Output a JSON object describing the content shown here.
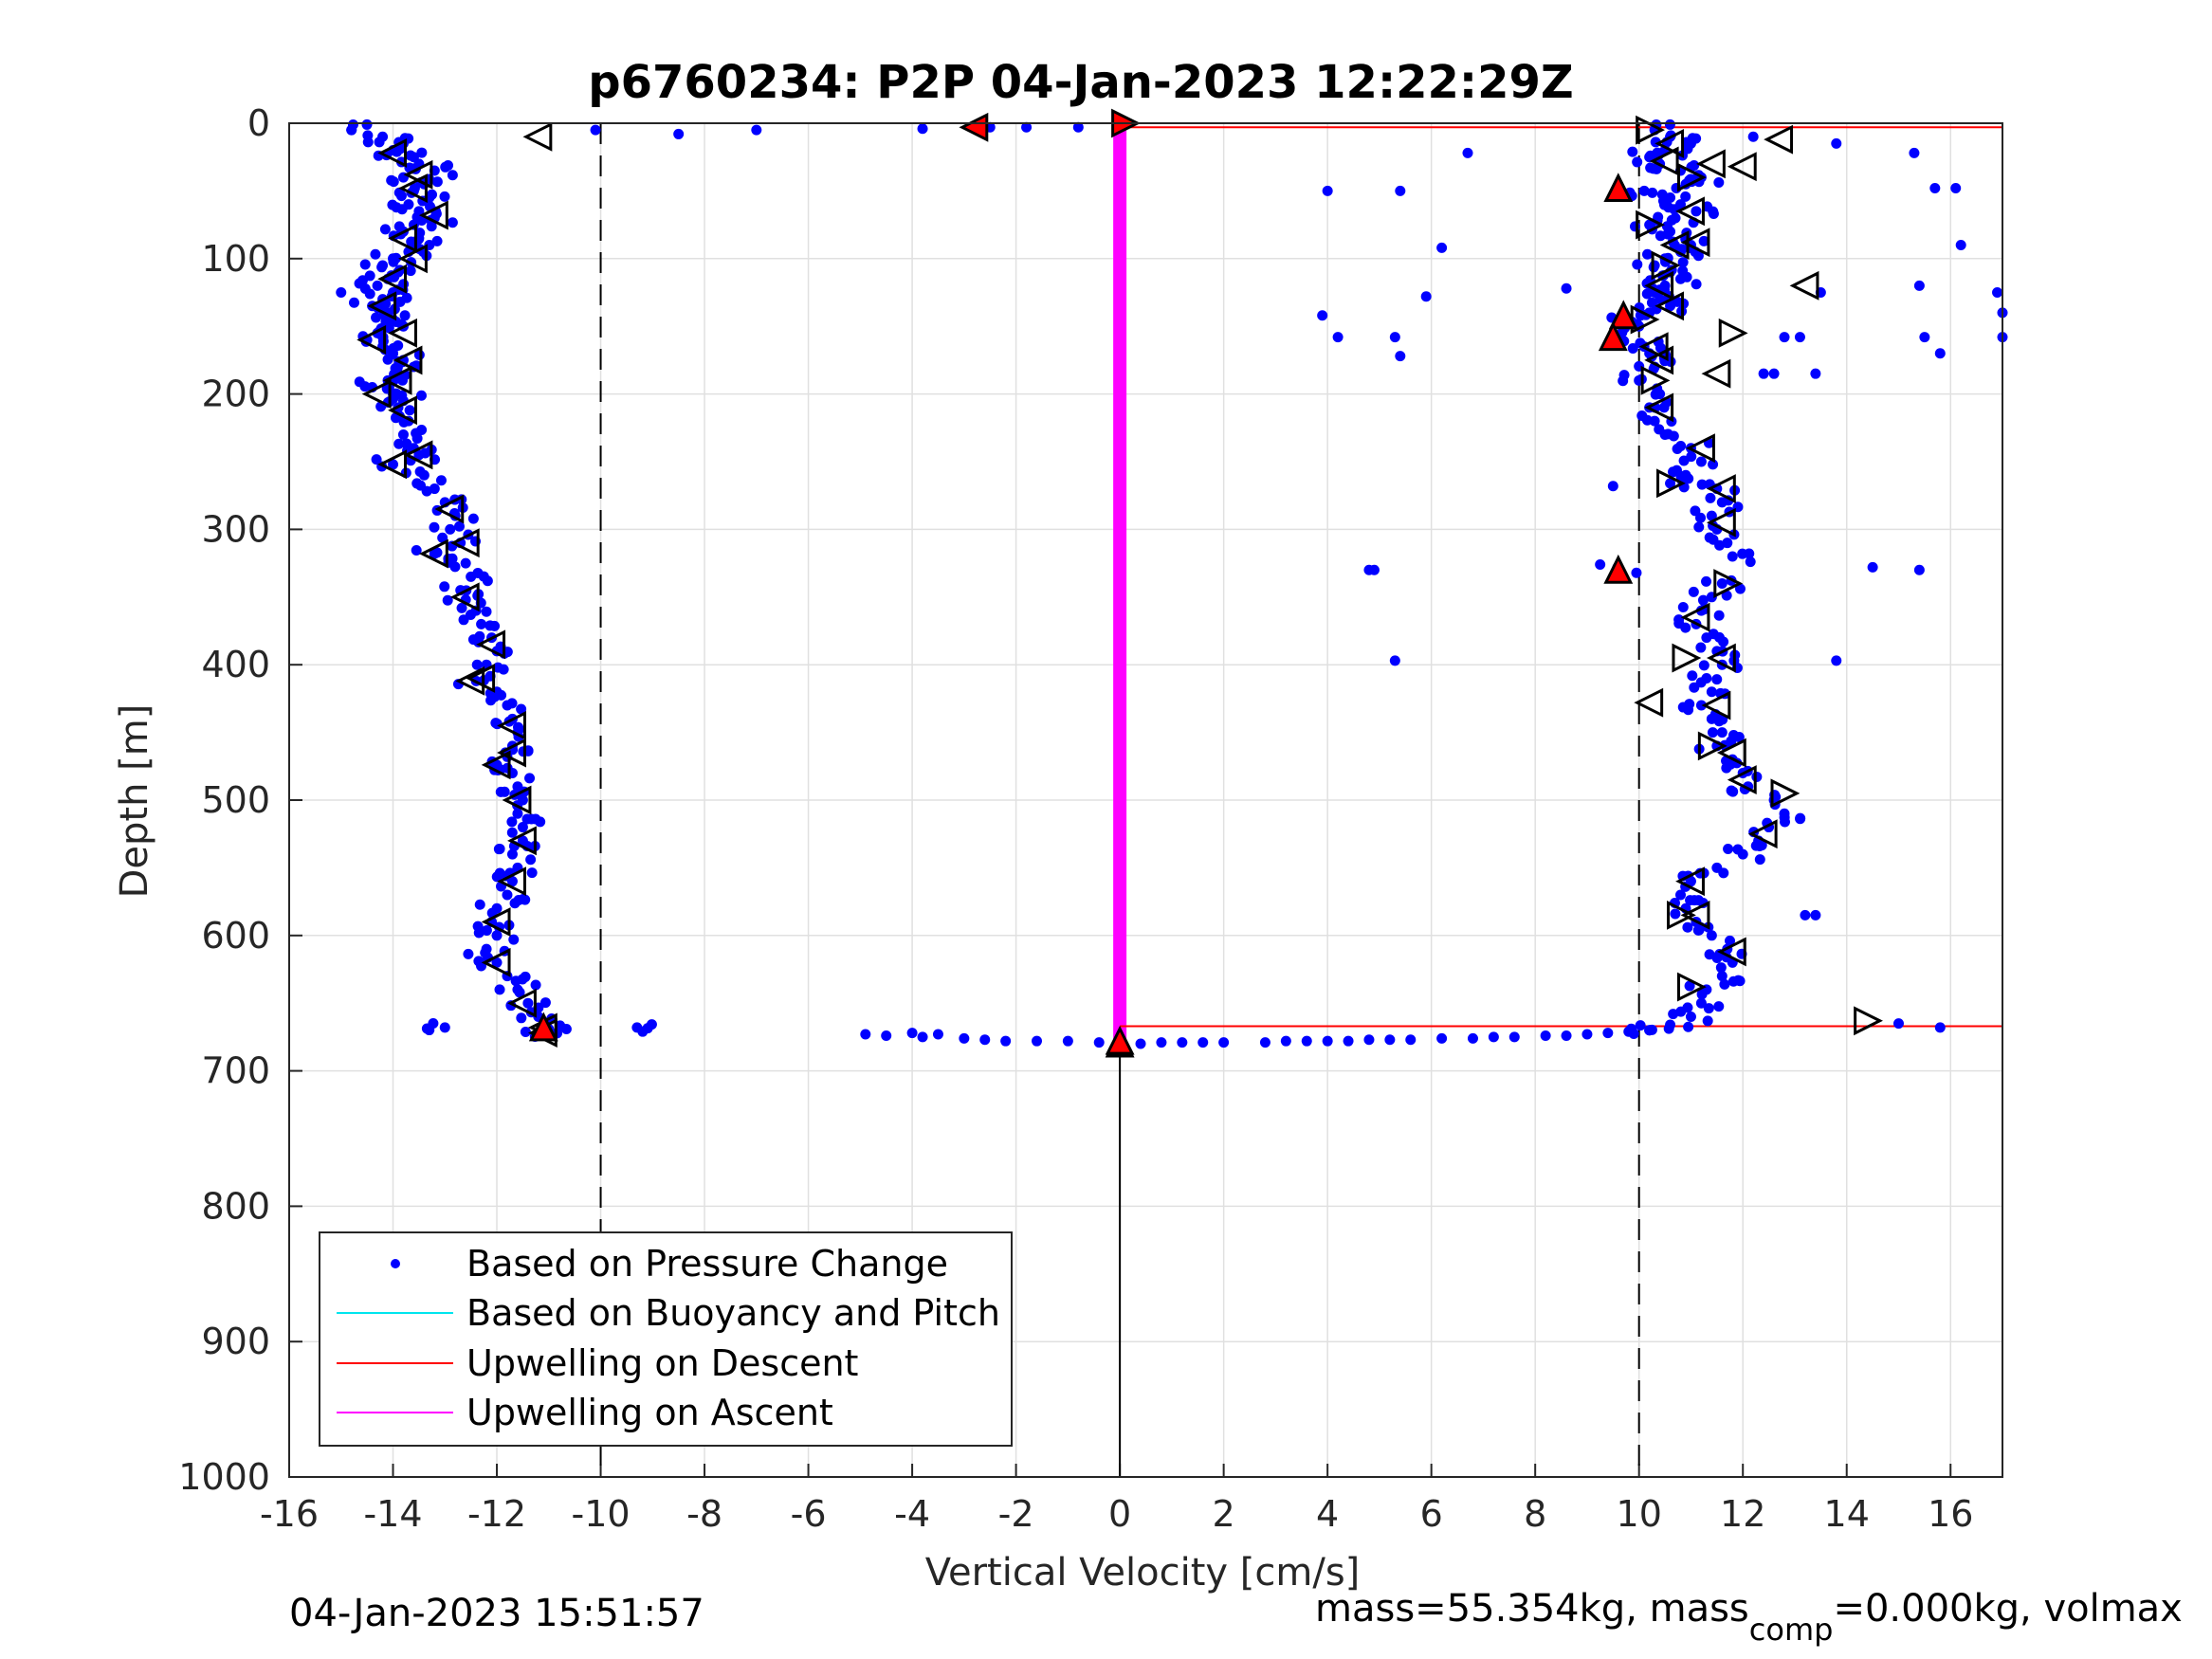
{
  "chart_data": {
    "type": "scatter",
    "title": "p6760234: P2P 04-Jan-2023 12:22:29Z",
    "xlabel": "Vertical Velocity [cm/s]",
    "ylabel": "Depth [m]",
    "xlim": [
      -16,
      17
    ],
    "ylim": [
      0,
      1000
    ],
    "y_reversed": true,
    "grid": true,
    "x_ticks": [
      "-16",
      "-14",
      "-12",
      "-10",
      "-8",
      "-6",
      "-4",
      "-2",
      "0",
      "2",
      "4",
      "6",
      "8",
      "10",
      "12",
      "14",
      "16"
    ],
    "y_ticks": [
      "0",
      "100",
      "200",
      "300",
      "400",
      "500",
      "600",
      "700",
      "800",
      "900",
      "1000"
    ],
    "legend": {
      "placement": "lower-left",
      "entries": [
        {
          "label": "Based on Pressure Change",
          "color": "#0000ff",
          "style": "dot"
        },
        {
          "label": "Based on Buoyancy and Pitch",
          "color": "#00e5ee",
          "style": "line"
        },
        {
          "label": "Upwelling on Descent",
          "color": "#ff0000",
          "style": "line"
        },
        {
          "label": "Upwelling on Ascent",
          "color": "#ff00ff",
          "style": "line"
        }
      ]
    },
    "descent_profile": {
      "color": "#0000ff",
      "points": [
        [
          -14.8,
          5
        ],
        [
          -14.2,
          10
        ],
        [
          -13.8,
          15
        ],
        [
          -14.0,
          20
        ],
        [
          -13.6,
          25
        ],
        [
          -13.5,
          30
        ],
        [
          -13.2,
          35
        ],
        [
          -13.8,
          40
        ],
        [
          -13.4,
          45
        ],
        [
          -13.6,
          50
        ],
        [
          -13.3,
          55
        ],
        [
          -13.7,
          60
        ],
        [
          -13.5,
          65
        ],
        [
          -13.2,
          70
        ],
        [
          -13.6,
          75
        ],
        [
          -13.8,
          80
        ],
        [
          -13.5,
          85
        ],
        [
          -13.3,
          90
        ],
        [
          -13.7,
          95
        ],
        [
          -14.0,
          100
        ],
        [
          -14.2,
          105
        ],
        [
          -13.9,
          110
        ],
        [
          -14.1,
          115
        ],
        [
          -14.3,
          120
        ],
        [
          -14.0,
          125
        ],
        [
          -14.2,
          130
        ],
        [
          -14.4,
          135
        ],
        [
          -14.1,
          140
        ],
        [
          -14.0,
          145
        ],
        [
          -13.8,
          150
        ],
        [
          -14.3,
          155
        ],
        [
          -14.5,
          160
        ],
        [
          -14.2,
          165
        ],
        [
          -14.0,
          170
        ],
        [
          -13.8,
          175
        ],
        [
          -13.6,
          180
        ],
        [
          -13.9,
          185
        ],
        [
          -14.1,
          190
        ],
        [
          -14.4,
          195
        ],
        [
          -14.0,
          200
        ],
        [
          -13.8,
          205
        ],
        [
          -13.9,
          210
        ],
        [
          -13.7,
          220
        ],
        [
          -13.8,
          230
        ],
        [
          -13.6,
          240
        ],
        [
          -13.5,
          245
        ],
        [
          -14.0,
          252
        ],
        [
          -13.4,
          260
        ],
        [
          -13.2,
          270
        ],
        [
          -13.0,
          280
        ],
        [
          -12.8,
          290
        ],
        [
          -12.9,
          300
        ],
        [
          -12.7,
          310
        ],
        [
          -13.2,
          318
        ],
        [
          -12.6,
          325
        ],
        [
          -12.5,
          335
        ],
        [
          -12.7,
          345
        ],
        [
          -12.6,
          352
        ],
        [
          -12.4,
          360
        ],
        [
          -12.3,
          370
        ],
        [
          -12.1,
          380
        ],
        [
          -12.0,
          390
        ],
        [
          -12.2,
          400
        ],
        [
          -12.4,
          412
        ],
        [
          -12.0,
          420
        ],
        [
          -11.8,
          430
        ],
        [
          -11.7,
          440
        ],
        [
          -11.6,
          450
        ],
        [
          -11.7,
          460
        ],
        [
          -11.8,
          468
        ],
        [
          -12.0,
          474
        ],
        [
          -11.7,
          480
        ],
        [
          -11.6,
          490
        ],
        [
          -11.5,
          500
        ],
        [
          -11.6,
          510
        ],
        [
          -11.5,
          520
        ],
        [
          -11.5,
          530
        ],
        [
          -11.7,
          540
        ],
        [
          -11.6,
          550
        ],
        [
          -11.7,
          560
        ],
        [
          -11.8,
          570
        ],
        [
          -12.0,
          580
        ],
        [
          -12.1,
          590
        ],
        [
          -12.0,
          600
        ],
        [
          -12.2,
          610
        ],
        [
          -12.0,
          620
        ],
        [
          -11.8,
          630
        ],
        [
          -11.6,
          640
        ],
        [
          -11.4,
          650
        ],
        [
          -11.2,
          660
        ],
        [
          -11.1,
          668
        ],
        [
          -13.0,
          668
        ],
        [
          -9.3,
          668
        ],
        [
          -11.0,
          672
        ]
      ],
      "outliers": [
        [
          -15.0,
          125
        ],
        [
          -14.8,
          5
        ],
        [
          -10.1,
          5
        ],
        [
          -8.5,
          8
        ],
        [
          -7.0,
          5
        ],
        [
          -3.8,
          4
        ],
        [
          -2.5,
          3
        ],
        [
          -1.8,
          3
        ],
        [
          -0.8,
          3
        ]
      ]
    },
    "ascent_profile": {
      "color": "#0000ff",
      "points": [
        [
          10.3,
          5
        ],
        [
          10.6,
          10
        ],
        [
          11.0,
          15
        ],
        [
          10.5,
          20
        ],
        [
          10.2,
          25
        ],
        [
          10.4,
          30
        ],
        [
          10.8,
          35
        ],
        [
          11.2,
          40
        ],
        [
          10.9,
          45
        ],
        [
          10.1,
          50
        ],
        [
          10.6,
          55
        ],
        [
          10.8,
          60
        ],
        [
          11.1,
          65
        ],
        [
          10.7,
          70
        ],
        [
          10.2,
          75
        ],
        [
          10.6,
          80
        ],
        [
          10.9,
          85
        ],
        [
          11.0,
          90
        ],
        [
          10.8,
          95
        ],
        [
          10.5,
          100
        ],
        [
          10.3,
          105
        ],
        [
          10.6,
          110
        ],
        [
          10.8,
          115
        ],
        [
          10.5,
          120
        ],
        [
          10.3,
          125
        ],
        [
          10.4,
          130
        ],
        [
          10.6,
          135
        ],
        [
          10.2,
          140
        ],
        [
          9.8,
          145
        ],
        [
          10.0,
          150
        ],
        [
          9.6,
          158
        ],
        [
          10.1,
          165
        ],
        [
          10.2,
          170
        ],
        [
          10.5,
          175
        ],
        [
          10.3,
          180
        ],
        [
          10.0,
          190
        ],
        [
          10.4,
          200
        ],
        [
          10.2,
          210
        ],
        [
          10.3,
          220
        ],
        [
          10.5,
          230
        ],
        [
          11.0,
          240
        ],
        [
          11.2,
          250
        ],
        [
          10.9,
          260
        ],
        [
          10.6,
          266
        ],
        [
          11.5,
          270
        ],
        [
          11.6,
          280
        ],
        [
          11.4,
          290
        ],
        [
          11.5,
          300
        ],
        [
          11.7,
          310
        ],
        [
          11.8,
          320
        ],
        [
          9.6,
          330
        ],
        [
          11.6,
          340
        ],
        [
          11.4,
          350
        ],
        [
          11.2,
          360
        ],
        [
          11.1,
          370
        ],
        [
          11.3,
          380
        ],
        [
          11.5,
          390
        ],
        [
          11.6,
          400
        ],
        [
          11.3,
          410
        ],
        [
          11.4,
          420
        ],
        [
          11.2,
          430
        ],
        [
          11.4,
          440
        ],
        [
          11.6,
          450
        ],
        [
          11.5,
          460
        ],
        [
          11.8,
          470
        ],
        [
          12.0,
          480
        ],
        [
          12.1,
          490
        ],
        [
          12.6,
          500
        ],
        [
          12.8,
          510
        ],
        [
          12.5,
          520
        ],
        [
          12.3,
          530
        ],
        [
          12.0,
          540
        ],
        [
          11.5,
          550
        ],
        [
          11.0,
          560
        ],
        [
          10.8,
          570
        ],
        [
          10.9,
          580
        ],
        [
          11.1,
          590
        ],
        [
          11.4,
          600
        ],
        [
          11.7,
          610
        ],
        [
          11.8,
          620
        ],
        [
          11.6,
          630
        ],
        [
          11.3,
          640
        ],
        [
          11.2,
          650
        ],
        [
          11.0,
          660
        ],
        [
          10.6,
          666
        ],
        [
          10.2,
          670
        ]
      ],
      "outliers": [
        [
          12.2,
          10
        ],
        [
          13.8,
          15
        ],
        [
          15.3,
          22
        ],
        [
          15.7,
          48
        ],
        [
          16.1,
          48
        ],
        [
          16.2,
          90
        ],
        [
          16.9,
          125
        ],
        [
          17.0,
          140
        ],
        [
          17.0,
          158
        ],
        [
          15.5,
          158
        ],
        [
          15.8,
          170
        ],
        [
          15.4,
          120
        ],
        [
          14.5,
          328
        ],
        [
          15.4,
          330
        ],
        [
          13.8,
          397
        ],
        [
          13.2,
          585
        ],
        [
          13.4,
          585
        ],
        [
          15.0,
          665
        ],
        [
          15.8,
          668
        ],
        [
          13.5,
          125
        ],
        [
          4.0,
          50
        ],
        [
          5.4,
          50
        ],
        [
          6.7,
          22
        ],
        [
          6.2,
          92
        ],
        [
          5.9,
          128
        ],
        [
          8.6,
          122
        ],
        [
          3.9,
          142
        ],
        [
          4.2,
          158
        ],
        [
          5.3,
          158
        ],
        [
          5.4,
          172
        ],
        [
          4.8,
          330
        ],
        [
          4.9,
          330
        ],
        [
          5.3,
          397
        ],
        [
          9.5,
          268
        ],
        [
          12.8,
          158
        ],
        [
          13.1,
          158
        ],
        [
          13.4,
          185
        ],
        [
          12.6,
          185
        ],
        [
          12.4,
          185
        ]
      ]
    },
    "surface_transition": {
      "color": "#0000ff",
      "points": [
        [
          -4.9,
          673
        ],
        [
          -4.5,
          674
        ],
        [
          -4.0,
          672
        ],
        [
          -3.8,
          675
        ],
        [
          -3.5,
          673
        ],
        [
          -3.0,
          676
        ],
        [
          -2.6,
          677
        ],
        [
          -2.2,
          678
        ],
        [
          -1.6,
          678
        ],
        [
          -1.0,
          678
        ],
        [
          -0.4,
          679
        ],
        [
          0.0,
          680
        ],
        [
          0.4,
          680
        ],
        [
          0.8,
          679
        ],
        [
          1.2,
          679
        ],
        [
          1.6,
          679
        ],
        [
          2.0,
          679
        ],
        [
          2.8,
          679
        ],
        [
          3.2,
          678
        ],
        [
          3.6,
          678
        ],
        [
          4.0,
          678
        ],
        [
          4.4,
          678
        ],
        [
          4.8,
          677
        ],
        [
          5.2,
          677
        ],
        [
          5.6,
          677
        ],
        [
          6.2,
          676
        ],
        [
          6.8,
          676
        ],
        [
          7.2,
          675
        ],
        [
          7.6,
          675
        ],
        [
          8.2,
          674
        ],
        [
          8.6,
          674
        ],
        [
          9.0,
          673
        ],
        [
          9.4,
          672
        ],
        [
          9.8,
          671
        ],
        [
          10.2,
          670
        ]
      ]
    },
    "descent_markers": [
      [
        -14.0,
        22
      ],
      [
        -13.5,
        38
      ],
      [
        -13.6,
        48
      ],
      [
        -13.2,
        68
      ],
      [
        -13.8,
        85
      ],
      [
        -13.6,
        100
      ],
      [
        -14.0,
        115
      ],
      [
        -14.2,
        135
      ],
      [
        -13.8,
        155
      ],
      [
        -14.4,
        160
      ],
      [
        -13.7,
        175
      ],
      [
        -13.9,
        190
      ],
      [
        -14.3,
        200
      ],
      [
        -13.8,
        212
      ],
      [
        -13.5,
        245
      ],
      [
        -14.0,
        252
      ],
      [
        -12.9,
        285
      ],
      [
        -12.6,
        310
      ],
      [
        -13.2,
        318
      ],
      [
        -12.6,
        350
      ],
      [
        -12.1,
        385
      ],
      [
        -12.3,
        410
      ],
      [
        -12.5,
        412
      ],
      [
        -11.7,
        445
      ],
      [
        -11.7,
        465
      ],
      [
        -12.0,
        474
      ],
      [
        -11.6,
        500
      ],
      [
        -11.5,
        530
      ],
      [
        -11.7,
        560
      ],
      [
        -12.0,
        590
      ],
      [
        -12.0,
        620
      ],
      [
        -11.5,
        650
      ],
      [
        -11.1,
        668
      ],
      [
        -11.1,
        672
      ]
    ],
    "ascent_markers": [
      [
        10.2,
        5
      ],
      [
        10.6,
        15
      ],
      [
        10.5,
        28
      ],
      [
        11.0,
        40
      ],
      [
        11.4,
        30
      ],
      [
        11.0,
        65
      ],
      [
        10.2,
        75
      ],
      [
        10.7,
        90
      ],
      [
        11.1,
        88
      ],
      [
        10.5,
        105
      ],
      [
        10.4,
        120
      ],
      [
        10.6,
        135
      ],
      [
        10.1,
        145
      ],
      [
        10.3,
        165
      ],
      [
        10.4,
        175
      ],
      [
        10.3,
        190
      ],
      [
        10.4,
        210
      ],
      [
        11.2,
        240
      ],
      [
        10.6,
        266
      ],
      [
        11.6,
        270
      ],
      [
        11.6,
        295
      ],
      [
        11.7,
        340
      ],
      [
        11.1,
        365
      ],
      [
        11.6,
        395
      ],
      [
        10.9,
        395
      ],
      [
        11.5,
        430
      ],
      [
        10.2,
        428
      ],
      [
        11.4,
        460
      ],
      [
        11.8,
        465
      ],
      [
        12.0,
        485
      ],
      [
        12.8,
        495
      ],
      [
        12.4,
        525
      ],
      [
        11.0,
        560
      ],
      [
        10.8,
        585
      ],
      [
        11.1,
        585
      ],
      [
        11.8,
        612
      ],
      [
        11.0,
        638
      ],
      [
        12.7,
        12
      ],
      [
        12.0,
        32
      ],
      [
        11.8,
        155
      ],
      [
        13.2,
        120
      ],
      [
        11.5,
        185
      ],
      [
        14.4,
        663
      ]
    ],
    "red_markers": [
      {
        "x": -2.8,
        "y": 3,
        "dir": "left"
      },
      {
        "x": 0.1,
        "y": 0,
        "dir": "right"
      },
      {
        "x": 9.6,
        "y": 48,
        "dir": "up"
      },
      {
        "x": 9.7,
        "y": 142,
        "dir": "up"
      },
      {
        "x": 9.5,
        "y": 158,
        "dir": "up"
      },
      {
        "x": 9.6,
        "y": 330,
        "dir": "up"
      },
      {
        "x": -11.1,
        "y": 668,
        "dir": "up"
      },
      {
        "x": 0.0,
        "y": 678,
        "dir": "up"
      }
    ],
    "open_markers_extra": [
      {
        "x": -11.2,
        "y": 10,
        "dir": "left"
      },
      {
        "x": 0.0,
        "y": 680,
        "dir": "up"
      }
    ],
    "reference_lines": {
      "dashed_x": [
        -10,
        10
      ],
      "solid_x": [
        {
          "x": 0,
          "y_from": 680,
          "y_to": 1000
        }
      ]
    },
    "upwelling_descent": {
      "color": "#ff0000",
      "segments": [
        {
          "y": 3,
          "x_from": 0,
          "x_to": 17
        },
        {
          "y": 667,
          "x_from": 0,
          "x_to": 17
        }
      ]
    },
    "upwelling_ascent": {
      "color": "#ff00ff",
      "x": 0,
      "y_from": 0,
      "y_to": 678
    }
  },
  "footer": {
    "timestamp": "04-Jan-2023 15:51:57",
    "mass_prefix": "mass=55.354kg, mass",
    "mass_sub": "comp",
    "mass_suffix": "=0.000kg, volmax"
  }
}
